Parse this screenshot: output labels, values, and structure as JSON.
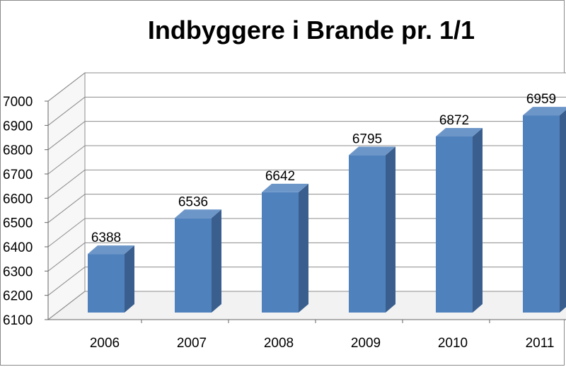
{
  "chart_data": {
    "type": "bar",
    "title": "Indbyggere i Brande pr. 1/1",
    "categories": [
      "2006",
      "2007",
      "2008",
      "2009",
      "2010",
      "2011"
    ],
    "values": [
      6388,
      6536,
      6642,
      6795,
      6872,
      6959
    ],
    "data_labels": [
      "6388",
      "6536",
      "6642",
      "6795",
      "6872",
      "6959"
    ],
    "yticks": [
      "6100",
      "6200",
      "6300",
      "6400",
      "6500",
      "6600",
      "6700",
      "6800",
      "6900",
      "7000"
    ],
    "ylim": [
      6100,
      7000
    ],
    "grid": true,
    "legend": "none",
    "style": "3d-column",
    "colors": {
      "bar_front": "#4f81bd",
      "bar_side": "#3a5f8e",
      "bar_top": "#6d96c8",
      "grid": "#8c8c8c"
    }
  }
}
